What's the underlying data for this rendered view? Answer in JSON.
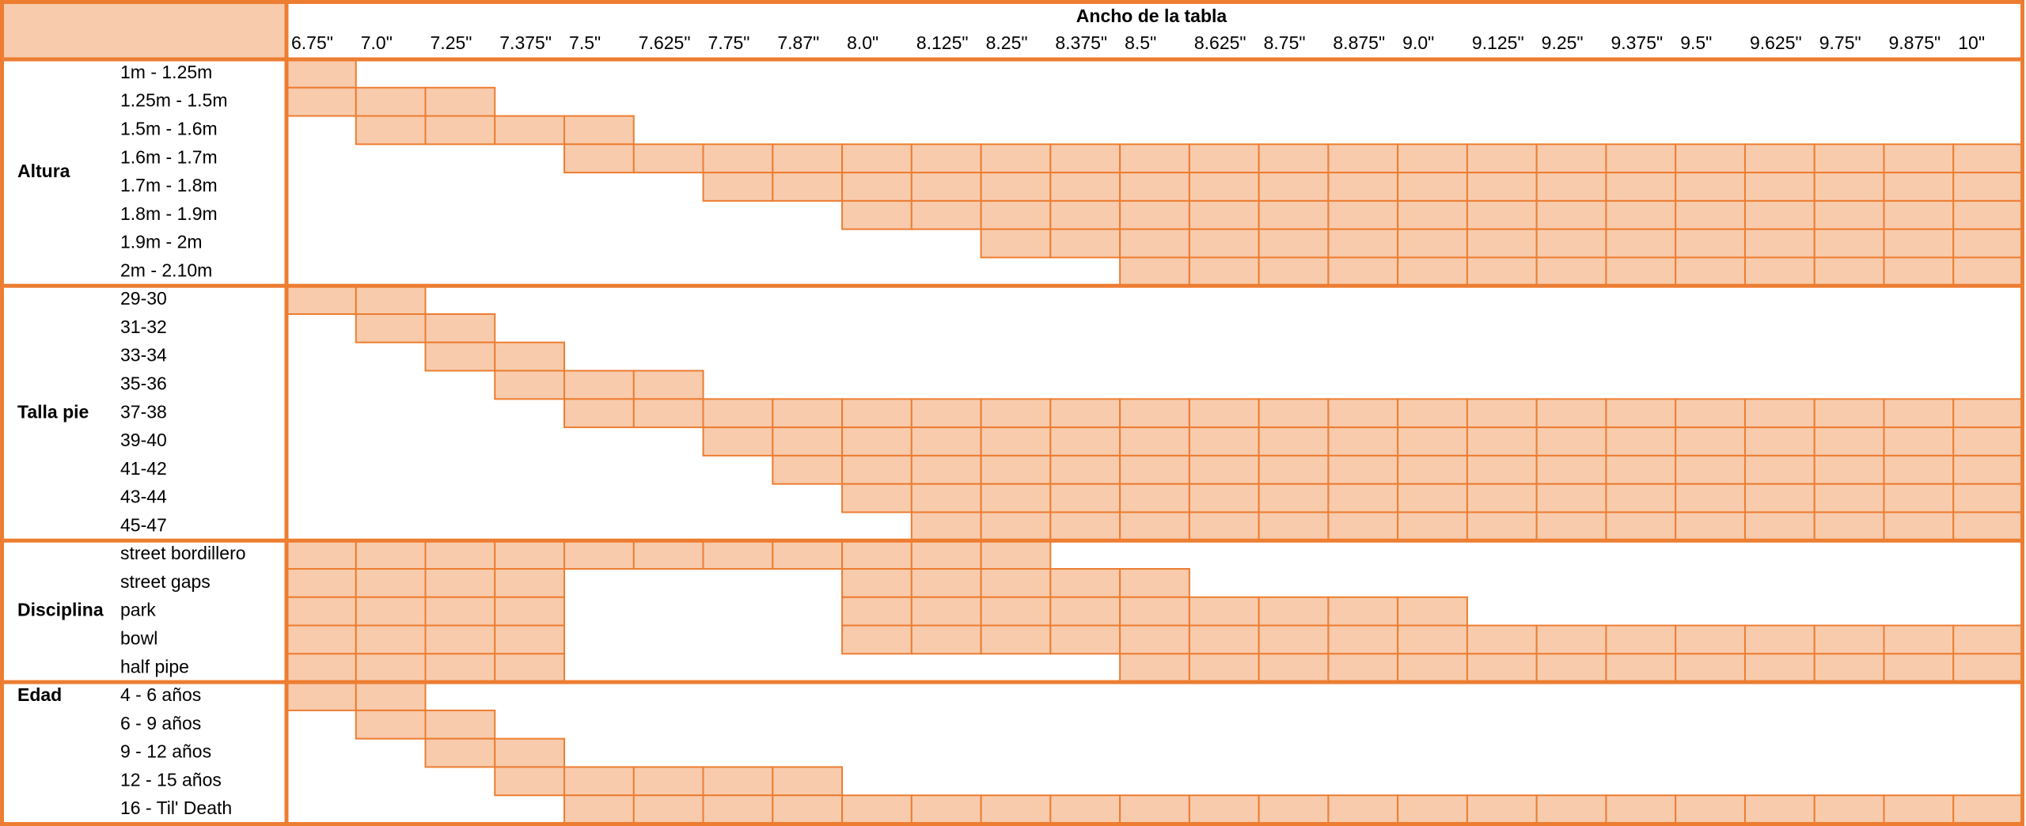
{
  "header": {
    "title": "Ancho de la tabla",
    "widths": [
      "6.75\"",
      "7.0\"",
      "7.25\"",
      "7.375\"",
      "7.5\"",
      "7.625\"",
      "7.75\"",
      "7.87\"",
      "8.0\"",
      "8.125\"",
      "8.25\"",
      "8.375\"",
      "8.5\"",
      "8.625\"",
      "8.75\"",
      "8.875\"",
      "9.0\"",
      "9.125\"",
      "9.25\"",
      "9.375\"",
      "9.5\"",
      "9.625\"",
      "9.75\"",
      "9.875\"",
      "10\""
    ]
  },
  "groups": [
    {
      "label": "Altura",
      "rows": [
        {
          "label": "1m - 1.25m",
          "fill": [
            [
              0,
              0
            ]
          ]
        },
        {
          "label": "1.25m - 1.5m",
          "fill": [
            [
              0,
              2
            ]
          ]
        },
        {
          "label": "1.5m - 1.6m",
          "fill": [
            [
              1,
              4
            ]
          ]
        },
        {
          "label": "1.6m - 1.7m",
          "fill": [
            [
              4,
              24
            ]
          ]
        },
        {
          "label": "1.7m - 1.8m",
          "fill": [
            [
              6,
              24
            ]
          ]
        },
        {
          "label": "1.8m - 1.9m",
          "fill": [
            [
              8,
              24
            ]
          ]
        },
        {
          "label": "1.9m - 2m",
          "fill": [
            [
              10,
              24
            ]
          ]
        },
        {
          "label": "2m - 2.10m",
          "fill": [
            [
              12,
              24
            ]
          ]
        }
      ]
    },
    {
      "label": "Talla pie",
      "rows": [
        {
          "label": "29-30",
          "fill": [
            [
              0,
              1
            ]
          ]
        },
        {
          "label": "31-32",
          "fill": [
            [
              1,
              2
            ]
          ]
        },
        {
          "label": "33-34",
          "fill": [
            [
              2,
              3
            ]
          ]
        },
        {
          "label": "35-36",
          "fill": [
            [
              3,
              5
            ]
          ]
        },
        {
          "label": "37-38",
          "fill": [
            [
              4,
              24
            ]
          ]
        },
        {
          "label": "39-40",
          "fill": [
            [
              6,
              24
            ]
          ]
        },
        {
          "label": "41-42",
          "fill": [
            [
              7,
              24
            ]
          ]
        },
        {
          "label": "43-44",
          "fill": [
            [
              8,
              24
            ]
          ]
        },
        {
          "label": "45-47",
          "fill": [
            [
              9,
              24
            ]
          ]
        }
      ]
    },
    {
      "label": "Disciplina",
      "rows": [
        {
          "label": "street bordillero",
          "fill": [
            [
              0,
              10
            ]
          ]
        },
        {
          "label": "street gaps",
          "fill": [
            [
              0,
              3
            ],
            [
              8,
              12
            ]
          ]
        },
        {
          "label": "park",
          "fill": [
            [
              0,
              3
            ],
            [
              8,
              16
            ]
          ]
        },
        {
          "label": "bowl",
          "fill": [
            [
              0,
              3
            ],
            [
              8,
              24
            ]
          ]
        },
        {
          "label": "half pipe",
          "fill": [
            [
              0,
              3
            ],
            [
              12,
              24
            ]
          ]
        }
      ]
    },
    {
      "label": "Edad",
      "rows": [
        {
          "label": "4 - 6 años",
          "fill": [
            [
              0,
              1
            ]
          ]
        },
        {
          "label": "6 - 9 años",
          "fill": [
            [
              1,
              2
            ]
          ]
        },
        {
          "label": "9 - 12 años",
          "fill": [
            [
              2,
              3
            ]
          ]
        },
        {
          "label": "12 - 15 años",
          "fill": [
            [
              3,
              7
            ]
          ]
        },
        {
          "label": "16 - Til' Death",
          "fill": [
            [
              4,
              24
            ]
          ]
        }
      ]
    }
  ]
}
